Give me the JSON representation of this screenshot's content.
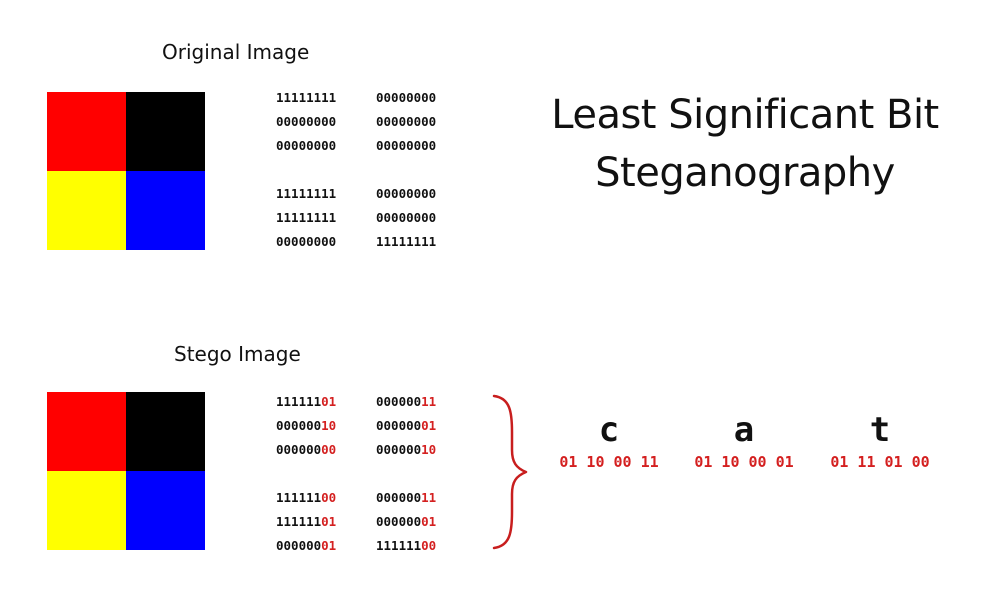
{
  "original": {
    "label": "Original Image",
    "colors": [
      "#ff0000",
      "#000000",
      "#ffff00",
      "#0000ff"
    ],
    "bits": [
      [
        {
          "prefix": "11111111",
          "lsb": ""
        },
        {
          "prefix": "00000000",
          "lsb": ""
        }
      ],
      [
        {
          "prefix": "00000000",
          "lsb": ""
        },
        {
          "prefix": "00000000",
          "lsb": ""
        }
      ],
      [
        {
          "prefix": "00000000",
          "lsb": ""
        },
        {
          "prefix": "00000000",
          "lsb": ""
        }
      ],
      [
        {
          "prefix": "11111111",
          "lsb": ""
        },
        {
          "prefix": "00000000",
          "lsb": ""
        }
      ],
      [
        {
          "prefix": "11111111",
          "lsb": ""
        },
        {
          "prefix": "00000000",
          "lsb": ""
        }
      ],
      [
        {
          "prefix": "00000000",
          "lsb": ""
        },
        {
          "prefix": "11111111",
          "lsb": ""
        }
      ]
    ]
  },
  "stego": {
    "label": "Stego Image",
    "colors": [
      "#ff0000",
      "#000000",
      "#ffff00",
      "#0000ff"
    ],
    "bits": [
      [
        {
          "prefix": "111111",
          "lsb": "01"
        },
        {
          "prefix": "000000",
          "lsb": "11"
        }
      ],
      [
        {
          "prefix": "000000",
          "lsb": "10"
        },
        {
          "prefix": "000000",
          "lsb": "01"
        }
      ],
      [
        {
          "prefix": "000000",
          "lsb": "00"
        },
        {
          "prefix": "000000",
          "lsb": "10"
        }
      ],
      [
        {
          "prefix": "111111",
          "lsb": "00"
        },
        {
          "prefix": "000000",
          "lsb": "11"
        }
      ],
      [
        {
          "prefix": "111111",
          "lsb": "01"
        },
        {
          "prefix": "000000",
          "lsb": "01"
        }
      ],
      [
        {
          "prefix": "000000",
          "lsb": "01"
        },
        {
          "prefix": "111111",
          "lsb": "00"
        }
      ]
    ]
  },
  "title": {
    "line1": "Least Significant Bit",
    "line2": "Steganography"
  },
  "message": {
    "letters": [
      {
        "char": "c",
        "bits": "01 10 00 11"
      },
      {
        "char": "a",
        "bits": "01 10 00 01"
      },
      {
        "char": "t",
        "bits": "01 11 01 00"
      }
    ]
  },
  "accent_color": "#d42020",
  "brace_color": "#c81e1e"
}
